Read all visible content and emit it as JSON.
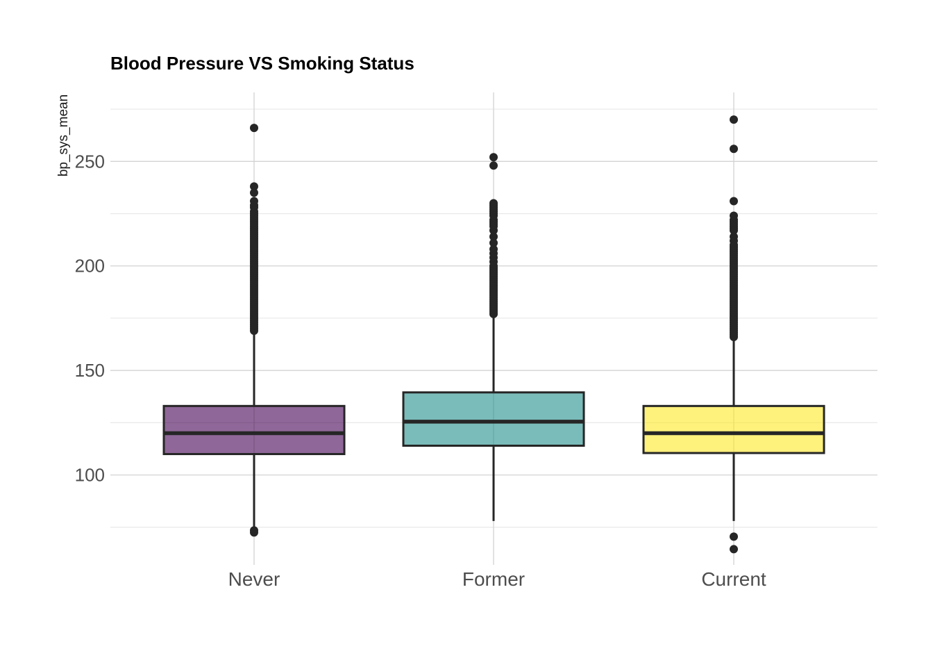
{
  "chart_data": {
    "type": "box",
    "title": "Blood Pressure VS Smoking Status",
    "xlabel": "",
    "ylabel": "bp_sys_mean",
    "categories": [
      "Never",
      "Former",
      "Current"
    ],
    "y_ticks": [
      100,
      150,
      200,
      250
    ],
    "ylim": [
      57,
      283
    ],
    "grid": true,
    "legend": "none",
    "colors": {
      "Never": "#440154",
      "Former": "#21908C",
      "Current": "#FDE725",
      "outline": "#262626",
      "grid_major": "#d3d3d3",
      "grid_minor": "#e8e8e8"
    },
    "fill_opacity": 0.6,
    "boxes": [
      {
        "category": "Never",
        "whisker_low": 72,
        "q1": 110,
        "median": 120,
        "q3": 133,
        "whisker_high": 168,
        "outliers": [
          72.5,
          73.5,
          169,
          170,
          171,
          172,
          173,
          174,
          175,
          176,
          177,
          178,
          179,
          180,
          181,
          182,
          183,
          184,
          185,
          186,
          187,
          188,
          189,
          190,
          191,
          192,
          193,
          194,
          195,
          196,
          197,
          198,
          199,
          200,
          201,
          202,
          203,
          204,
          205,
          206,
          207,
          208,
          209,
          210,
          211,
          212,
          213,
          214,
          215,
          216,
          217,
          218,
          219,
          220,
          221,
          222,
          223,
          224,
          225,
          226,
          228,
          229,
          231,
          235,
          238,
          266
        ]
      },
      {
        "category": "Former",
        "whisker_low": 78,
        "q1": 114,
        "median": 125.5,
        "q3": 139.5,
        "whisker_high": 176,
        "outliers": [
          177,
          178,
          179,
          180,
          181,
          182,
          183,
          184,
          185,
          186,
          187,
          188,
          189,
          190,
          191,
          192,
          193,
          194,
          195,
          196,
          197,
          198,
          199,
          200,
          202,
          204,
          206,
          208,
          211,
          214,
          217,
          219,
          220,
          221,
          222,
          224,
          225,
          226,
          227,
          228,
          229,
          230,
          248,
          252
        ]
      },
      {
        "category": "Current",
        "whisker_low": 78,
        "q1": 110.5,
        "median": 120,
        "q3": 133,
        "whisker_high": 165,
        "outliers": [
          70.5,
          64.5,
          166,
          167,
          168,
          169,
          170,
          171,
          172,
          173,
          174,
          175,
          176,
          177,
          178,
          179,
          180,
          181,
          182,
          183,
          184,
          185,
          186,
          187,
          188,
          189,
          190,
          191,
          192,
          193,
          194,
          195,
          196,
          197,
          198,
          199,
          200,
          201,
          202,
          203,
          204,
          205,
          206,
          207,
          208,
          209,
          210,
          212,
          214,
          217,
          218,
          219,
          220,
          221,
          222,
          224,
          231,
          256,
          270
        ]
      }
    ]
  }
}
